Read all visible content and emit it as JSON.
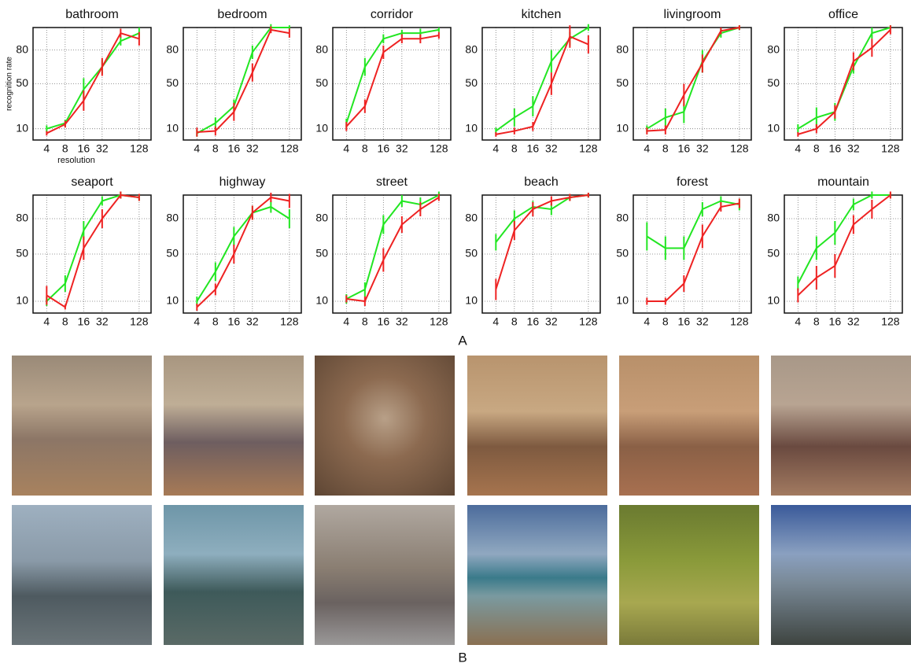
{
  "panels": {
    "a": "A",
    "b": "B"
  },
  "chart_data": [
    {
      "type": "line",
      "title": "bathroom",
      "ylabel": "recognition rate",
      "xlabel": "resolution",
      "x": [
        4,
        8,
        16,
        32,
        64,
        128
      ],
      "xscale": "log",
      "xlim": [
        2.4,
        200
      ],
      "xticks": [
        4,
        8,
        16,
        32,
        128
      ],
      "ylim": [
        0,
        100
      ],
      "yticks": [
        10,
        50,
        80
      ],
      "grid": true,
      "series": [
        {
          "color": "#22e622",
          "values": [
            10,
            15,
            45,
            65,
            88,
            95
          ],
          "errors": [
            3,
            3,
            10,
            6,
            4,
            5
          ]
        },
        {
          "color": "#ee2222",
          "values": [
            6,
            14,
            35,
            65,
            95,
            90
          ],
          "errors": [
            2,
            3,
            9,
            8,
            4,
            6
          ]
        }
      ]
    },
    {
      "type": "line",
      "title": "bedroom",
      "x": [
        4,
        8,
        16,
        32,
        64,
        128
      ],
      "xscale": "log",
      "xlim": [
        2.4,
        200
      ],
      "xticks": [
        4,
        8,
        16,
        32,
        128
      ],
      "ylim": [
        0,
        100
      ],
      "yticks": [
        10,
        50,
        80
      ],
      "grid": true,
      "series": [
        {
          "color": "#22e622",
          "values": [
            6,
            15,
            30,
            78,
            100,
            100
          ],
          "errors": [
            3,
            5,
            6,
            6,
            3,
            2
          ]
        },
        {
          "color": "#ee2222",
          "values": [
            7,
            8,
            25,
            60,
            98,
            95
          ],
          "errors": [
            4,
            4,
            8,
            8,
            3,
            4
          ]
        }
      ]
    },
    {
      "type": "line",
      "title": "corridor",
      "x": [
        4,
        8,
        16,
        32,
        64,
        128
      ],
      "xscale": "log",
      "xlim": [
        2.4,
        200
      ],
      "xticks": [
        4,
        8,
        16,
        32,
        128
      ],
      "ylim": [
        0,
        100
      ],
      "yticks": [
        10,
        50,
        80
      ],
      "grid": true,
      "series": [
        {
          "color": "#22e622",
          "values": [
            15,
            65,
            90,
            95,
            95,
            98
          ],
          "errors": [
            4,
            8,
            4,
            3,
            4,
            2
          ]
        },
        {
          "color": "#ee2222",
          "values": [
            12,
            30,
            78,
            90,
            90,
            93
          ],
          "errors": [
            4,
            6,
            6,
            4,
            4,
            3
          ]
        }
      ]
    },
    {
      "type": "line",
      "title": "kitchen",
      "x": [
        4,
        8,
        16,
        32,
        64,
        128
      ],
      "xscale": "log",
      "xlim": [
        2.4,
        200
      ],
      "xticks": [
        4,
        8,
        16,
        32,
        128
      ],
      "ylim": [
        0,
        100
      ],
      "yticks": [
        10,
        50,
        80
      ],
      "grid": true,
      "series": [
        {
          "color": "#22e622",
          "values": [
            8,
            20,
            30,
            70,
            90,
            100
          ],
          "errors": [
            3,
            8,
            9,
            10,
            6,
            3
          ]
        },
        {
          "color": "#ee2222",
          "values": [
            5,
            8,
            12,
            50,
            92,
            85
          ],
          "errors": [
            2,
            3,
            4,
            10,
            10,
            8
          ]
        }
      ]
    },
    {
      "type": "line",
      "title": "livingroom",
      "x": [
        4,
        8,
        16,
        32,
        64,
        128
      ],
      "xscale": "log",
      "xlim": [
        2.4,
        200
      ],
      "xticks": [
        4,
        8,
        16,
        32,
        128
      ],
      "ylim": [
        0,
        100
      ],
      "yticks": [
        10,
        50,
        80
      ],
      "grid": true,
      "series": [
        {
          "color": "#22e622",
          "values": [
            10,
            20,
            25,
            70,
            95,
            100
          ],
          "errors": [
            3,
            8,
            10,
            10,
            4,
            2
          ]
        },
        {
          "color": "#ee2222",
          "values": [
            8,
            9,
            40,
            68,
            97,
            100
          ],
          "errors": [
            3,
            4,
            10,
            8,
            3,
            2
          ]
        }
      ]
    },
    {
      "type": "line",
      "title": "office",
      "x": [
        4,
        8,
        16,
        32,
        64,
        128
      ],
      "xscale": "log",
      "xlim": [
        2.4,
        200
      ],
      "xticks": [
        4,
        8,
        16,
        32,
        128
      ],
      "ylim": [
        0,
        100
      ],
      "yticks": [
        10,
        50,
        80
      ],
      "grid": true,
      "series": [
        {
          "color": "#22e622",
          "values": [
            10,
            20,
            25,
            65,
            95,
            100
          ],
          "errors": [
            4,
            9,
            8,
            6,
            5,
            2
          ]
        },
        {
          "color": "#ee2222",
          "values": [
            5,
            10,
            25,
            70,
            82,
            98
          ],
          "errors": [
            2,
            4,
            6,
            8,
            8,
            4
          ]
        }
      ]
    },
    {
      "type": "line",
      "title": "seaport",
      "x": [
        4,
        8,
        16,
        32,
        64,
        128
      ],
      "xscale": "log",
      "xlim": [
        2.4,
        200
      ],
      "xticks": [
        4,
        8,
        16,
        32,
        128
      ],
      "ylim": [
        0,
        100
      ],
      "yticks": [
        10,
        50,
        80
      ],
      "grid": true,
      "series": [
        {
          "color": "#22e622",
          "values": [
            10,
            25,
            70,
            95,
            100,
            98
          ],
          "errors": [
            4,
            7,
            8,
            4,
            3,
            3
          ]
        },
        {
          "color": "#ee2222",
          "values": [
            15,
            5,
            55,
            80,
            100,
            98
          ],
          "errors": [
            8,
            2,
            10,
            8,
            3,
            3
          ]
        }
      ]
    },
    {
      "type": "line",
      "title": "highway",
      "x": [
        4,
        8,
        16,
        32,
        64,
        128
      ],
      "xscale": "log",
      "xlim": [
        2.4,
        200
      ],
      "xticks": [
        4,
        8,
        16,
        32,
        128
      ],
      "ylim": [
        0,
        100
      ],
      "yticks": [
        10,
        50,
        80
      ],
      "grid": true,
      "series": [
        {
          "color": "#22e622",
          "values": [
            10,
            35,
            65,
            85,
            90,
            80
          ],
          "errors": [
            4,
            8,
            8,
            6,
            5,
            8
          ]
        },
        {
          "color": "#ee2222",
          "values": [
            5,
            20,
            50,
            85,
            98,
            95
          ],
          "errors": [
            3,
            5,
            8,
            6,
            4,
            6
          ]
        }
      ]
    },
    {
      "type": "line",
      "title": "street",
      "x": [
        4,
        8,
        16,
        32,
        64,
        128
      ],
      "xscale": "log",
      "xlim": [
        2.4,
        200
      ],
      "xticks": [
        4,
        8,
        16,
        32,
        128
      ],
      "ylim": [
        0,
        100
      ],
      "yticks": [
        10,
        50,
        80
      ],
      "grid": true,
      "series": [
        {
          "color": "#22e622",
          "values": [
            12,
            20,
            75,
            95,
            92,
            100
          ],
          "errors": [
            4,
            6,
            8,
            5,
            6,
            3
          ]
        },
        {
          "color": "#ee2222",
          "values": [
            12,
            10,
            45,
            75,
            88,
            98
          ],
          "errors": [
            3,
            4,
            10,
            7,
            6,
            3
          ]
        }
      ]
    },
    {
      "type": "line",
      "title": "beach",
      "x": [
        4,
        8,
        16,
        32,
        64,
        128
      ],
      "xscale": "log",
      "xlim": [
        2.4,
        200
      ],
      "xticks": [
        4,
        8,
        16,
        32,
        128
      ],
      "ylim": [
        0,
        100
      ],
      "yticks": [
        10,
        50,
        80
      ],
      "grid": true,
      "series": [
        {
          "color": "#22e622",
          "values": [
            60,
            80,
            90,
            88,
            98,
            100
          ],
          "errors": [
            7,
            7,
            5,
            5,
            3,
            2
          ]
        },
        {
          "color": "#ee2222",
          "values": [
            20,
            70,
            88,
            95,
            98,
            100
          ],
          "errors": [
            9,
            8,
            6,
            4,
            3,
            2
          ]
        }
      ]
    },
    {
      "type": "line",
      "title": "forest",
      "x": [
        4,
        8,
        16,
        32,
        64,
        128
      ],
      "xscale": "log",
      "xlim": [
        2.4,
        200
      ],
      "xticks": [
        4,
        8,
        16,
        32,
        128
      ],
      "ylim": [
        0,
        100
      ],
      "yticks": [
        10,
        50,
        80
      ],
      "grid": true,
      "series": [
        {
          "color": "#22e622",
          "values": [
            65,
            55,
            55,
            88,
            95,
            92
          ],
          "errors": [
            12,
            10,
            10,
            6,
            4,
            5
          ]
        },
        {
          "color": "#ee2222",
          "values": [
            10,
            10,
            25,
            65,
            90,
            93
          ],
          "errors": [
            3,
            3,
            7,
            10,
            4,
            4
          ]
        }
      ]
    },
    {
      "type": "line",
      "title": "mountain",
      "x": [
        4,
        8,
        16,
        32,
        64,
        128
      ],
      "xscale": "log",
      "xlim": [
        2.4,
        200
      ],
      "xticks": [
        4,
        8,
        16,
        32,
        128
      ],
      "ylim": [
        0,
        100
      ],
      "yticks": [
        10,
        50,
        80
      ],
      "grid": true,
      "series": [
        {
          "color": "#22e622",
          "values": [
            25,
            55,
            68,
            92,
            100,
            100
          ],
          "errors": [
            6,
            10,
            10,
            5,
            3,
            2
          ]
        },
        {
          "color": "#ee2222",
          "values": [
            15,
            30,
            40,
            75,
            88,
            100
          ],
          "errors": [
            6,
            10,
            10,
            8,
            8,
            3
          ]
        }
      ]
    }
  ]
}
